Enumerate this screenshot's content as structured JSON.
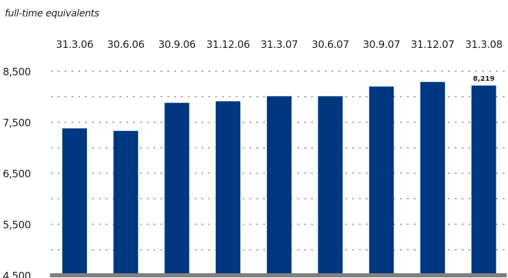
{
  "unit_label": "full-time equivalents",
  "colors": {
    "bar": "#003781",
    "baseline": "#808080",
    "grid": "#888888",
    "label": "#222222",
    "value_label": "#003781"
  },
  "chart_data": {
    "type": "bar",
    "categories": [
      "31.3.06",
      "30.6.06",
      "30.9.06",
      "31.12.06",
      "31.3.07",
      "30.6.07",
      "30.9.07",
      "31.12.07",
      "31.3.08"
    ],
    "values": [
      7380,
      7330,
      7880,
      7910,
      8010,
      8010,
      8200,
      8290,
      8219
    ],
    "ylim": [
      4500,
      8500
    ],
    "y_ticks": [
      {
        "value": 4500,
        "label": "4,500"
      },
      {
        "value": 5500,
        "label": "5,500"
      },
      {
        "value": 6500,
        "label": "6,500"
      },
      {
        "value": 7500,
        "label": "7,500"
      },
      {
        "value": 8500,
        "label": "8,500"
      }
    ],
    "y_minor_step": 500,
    "category_label_position": "top",
    "grid": "dotted-horizontal",
    "data_labels": [
      {
        "index": 8,
        "text": "8,219"
      }
    ]
  }
}
